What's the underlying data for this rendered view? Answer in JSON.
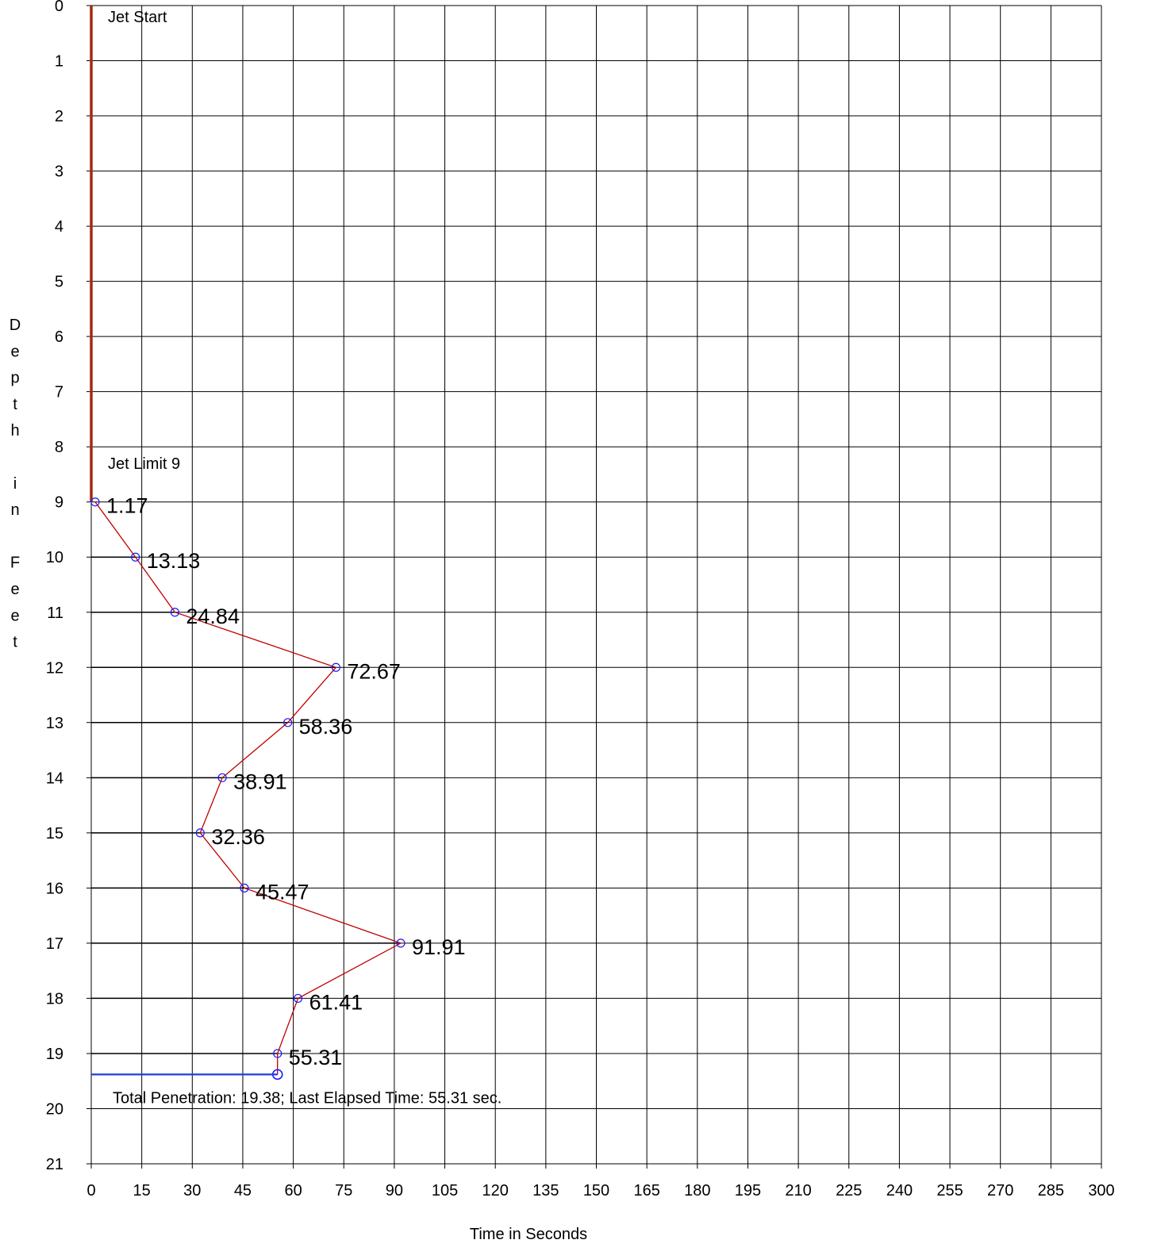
{
  "chart_data": {
    "type": "line",
    "xlabel": "Time in Seconds",
    "ylabel": "Depth in Feet",
    "xlim": [
      0,
      300
    ],
    "ylim": [
      0,
      21
    ],
    "x_ticks": [
      "0",
      "15",
      "30",
      "45",
      "60",
      "75",
      "90",
      "105",
      "120",
      "135",
      "150",
      "165",
      "180",
      "195",
      "210",
      "225",
      "240",
      "255",
      "270",
      "285",
      "300"
    ],
    "y_ticks": [
      "0",
      "1",
      "2",
      "3",
      "4",
      "5",
      "6",
      "7",
      "8",
      "9",
      "10",
      "11",
      "12",
      "13",
      "14",
      "15",
      "16",
      "17",
      "18",
      "19",
      "20",
      "21"
    ],
    "y_inverted": true,
    "grid": true,
    "colors": {
      "grid": "#000000",
      "jet_line": "#a32a12",
      "series_line": "#c00000",
      "marker": "#1a1aff",
      "total_line": "#1f3fd6"
    },
    "jet": {
      "x": 0,
      "y_start": 0,
      "y_end": 9,
      "start_label": "Jet Start",
      "limit_label": "Jet Limit 9"
    },
    "series": [
      {
        "x": [
          1.17,
          13.13,
          24.84,
          72.67,
          58.36,
          38.91,
          32.36,
          45.47,
          91.91,
          61.41,
          55.31,
          55.31
        ],
        "y": [
          9,
          10,
          11,
          12,
          13,
          14,
          15,
          16,
          17,
          18,
          19,
          19.38
        ],
        "labels": [
          "1.17",
          "13.13",
          "24.84",
          "72.67",
          "58.36",
          "38.91",
          "32.36",
          "45.47",
          "91.91",
          "61.41",
          "55.31",
          ""
        ]
      }
    ],
    "summary": {
      "text": "Total Penetration:  19.38; Last Elapsed Time:  55.31 sec.",
      "depth": 19.38,
      "time": 55.31
    }
  }
}
